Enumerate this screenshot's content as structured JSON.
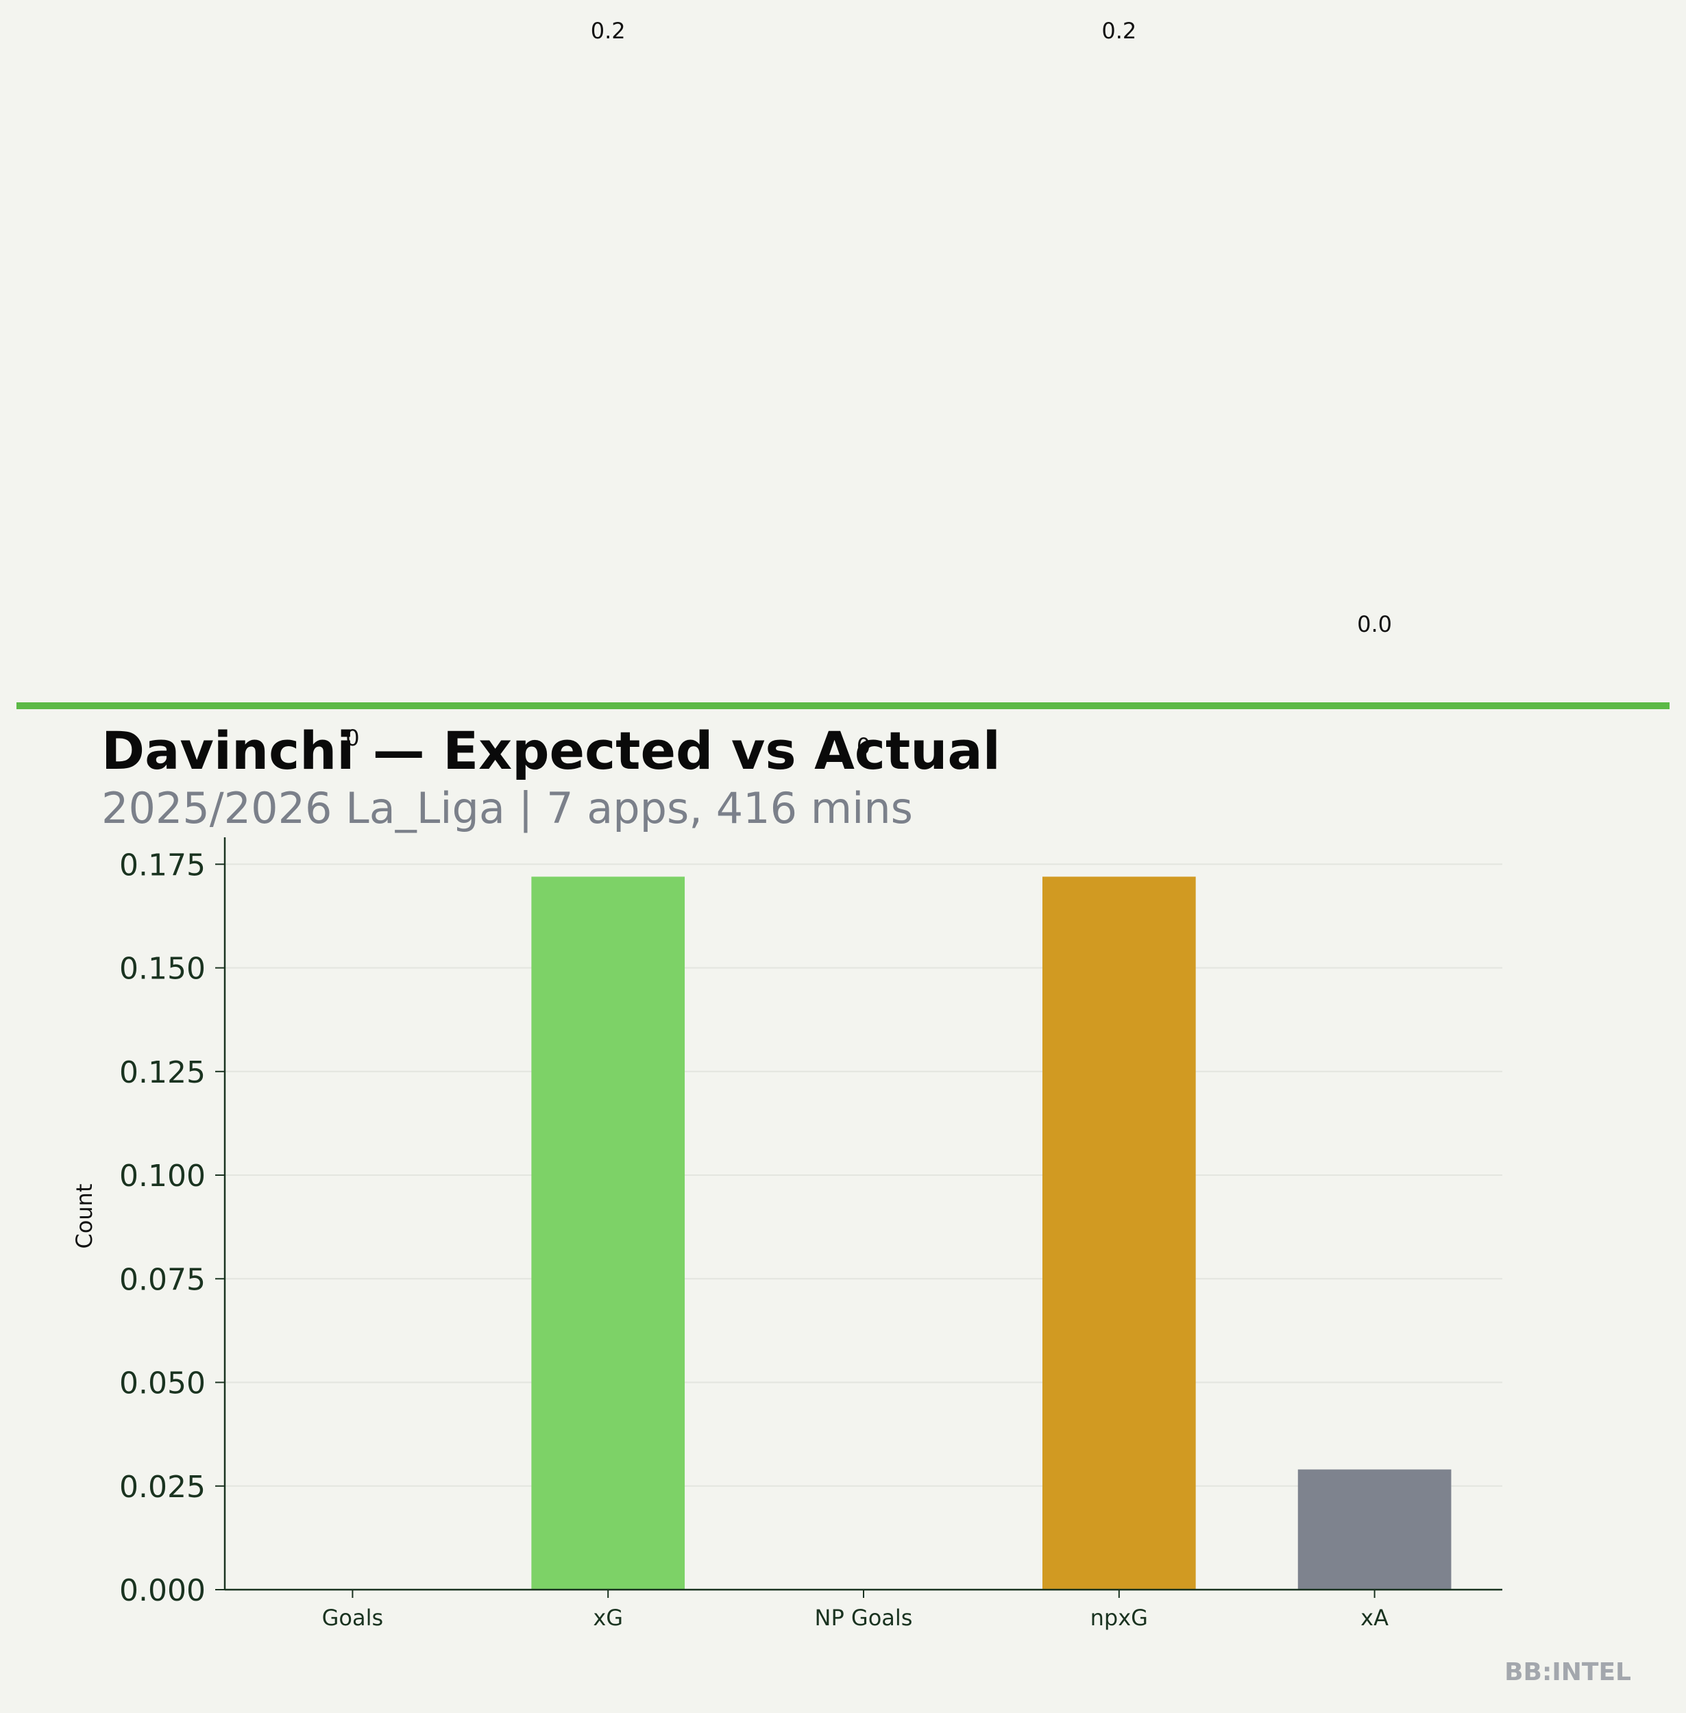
{
  "chart_data": {
    "type": "bar",
    "title": "Davinchi — Expected vs Actual",
    "subtitle": "2025/2026 La_Liga | 7 apps, 416 mins",
    "ylabel": "Count",
    "xlabel": "",
    "categories": [
      "Goals",
      "xG",
      "NP Goals",
      "npxG",
      "xA"
    ],
    "values": [
      0,
      0.172,
      0,
      0.172,
      0.029
    ],
    "data_labels": [
      "0",
      "0.2",
      "0",
      "0.2",
      "0.0"
    ],
    "colors": [
      "#5cb946",
      "#7dd267",
      "#5cb946",
      "#d19a22",
      "#7e838e"
    ],
    "ylim": [
      0,
      0.181
    ],
    "yticks": [
      "0.000",
      "0.025",
      "0.050",
      "0.075",
      "0.100",
      "0.125",
      "0.150",
      "0.175"
    ],
    "grid": true,
    "accent_line_color": "#5cb946"
  },
  "watermark": "BB:INTEL"
}
